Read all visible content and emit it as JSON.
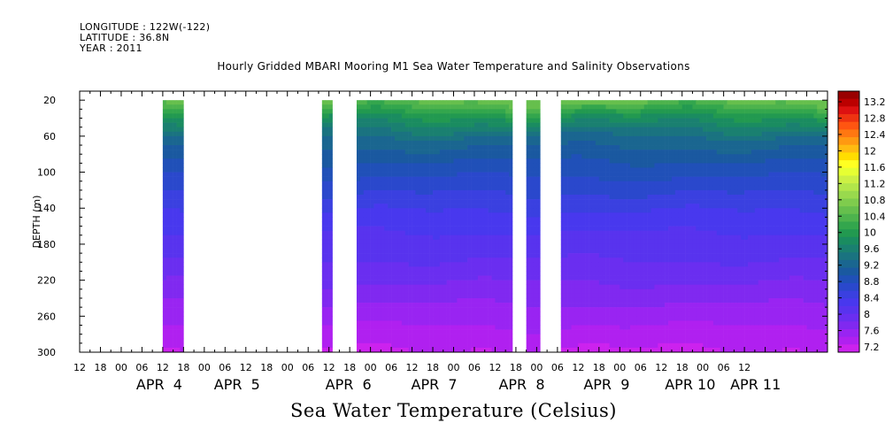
{
  "header": {
    "longitude": "LONGITUDE : 122W(-122)",
    "latitude": "LATITUDE : 36.8N",
    "year": "YEAR : 2011"
  },
  "chart_data": {
    "type": "heatmap",
    "title": "Hourly Gridded MBARI Mooring M1 Sea Water Temperature and Salinity Observations",
    "xlabel": "Sea Water Temperature (Celsius)",
    "ylabel": "DEPTH (m)",
    "x_range_hours": [
      12,
      228
    ],
    "ylim": [
      300,
      10
    ],
    "y_ticks": [
      20,
      60,
      100,
      140,
      180,
      220,
      260,
      300
    ],
    "x_hour_labels": [
      "12",
      "18",
      "00",
      "06",
      "12",
      "18",
      "00",
      "06",
      "12",
      "18",
      "00",
      "06",
      "12",
      "18",
      "00",
      "06",
      "12",
      "18",
      "00",
      "06",
      "12",
      "18",
      "00",
      "06",
      "12",
      "18",
      "00",
      "06",
      "12",
      "18",
      "00",
      "06",
      "12"
    ],
    "x_day_labels": [
      "APR  4",
      "APR  5",
      "APR  6",
      "APR  7",
      "APR  8",
      "APR  9",
      "APR 10",
      "APR 11"
    ],
    "data_intervals_hours": [
      [
        36,
        42
      ],
      [
        82,
        85
      ],
      [
        92,
        137
      ],
      [
        141,
        145
      ],
      [
        151,
        228
      ]
    ],
    "colorbar": {
      "labels": [
        "13.2",
        "12.8",
        "12.4",
        "12",
        "11.6",
        "11.2",
        "10.8",
        "10.4",
        "10",
        "9.6",
        "9.2",
        "8.8",
        "8.4",
        "8",
        "7.6",
        "7.2"
      ],
      "colors": [
        "#990000",
        "#bb0000",
        "#dd1111",
        "#ee3311",
        "#ff5511",
        "#ff7711",
        "#ff9911",
        "#ffbb11",
        "#ffdd00",
        "#ffff22",
        "#e6ff33",
        "#ccf044",
        "#b2e64a",
        "#99d94d",
        "#7fcc4d",
        "#66bf4d",
        "#4db34d",
        "#33a64d",
        "#229950",
        "#1a8c60",
        "#1a8070",
        "#1a7380",
        "#1a6690",
        "#1a59a0",
        "#2050b8",
        "#2a48cc",
        "#3a40e0",
        "#4838ee",
        "#5833ee",
        "#6a2ef0",
        "#8029f0",
        "#9924f2",
        "#b020f0",
        "#cc22ee"
      ]
    },
    "temperature_profile": [
      {
        "depth": 20,
        "temp": 10.6
      },
      {
        "depth": 40,
        "temp": 9.9
      },
      {
        "depth": 60,
        "temp": 9.4
      },
      {
        "depth": 80,
        "temp": 9.1
      },
      {
        "depth": 100,
        "temp": 8.9
      },
      {
        "depth": 120,
        "temp": 8.7
      },
      {
        "depth": 140,
        "temp": 8.5
      },
      {
        "depth": 160,
        "temp": 8.35
      },
      {
        "depth": 180,
        "temp": 8.2
      },
      {
        "depth": 200,
        "temp": 8.1
      },
      {
        "depth": 220,
        "temp": 7.95
      },
      {
        "depth": 240,
        "temp": 7.8
      },
      {
        "depth": 260,
        "temp": 7.65
      },
      {
        "depth": 280,
        "temp": 7.5
      },
      {
        "depth": 300,
        "temp": 7.35
      }
    ]
  }
}
